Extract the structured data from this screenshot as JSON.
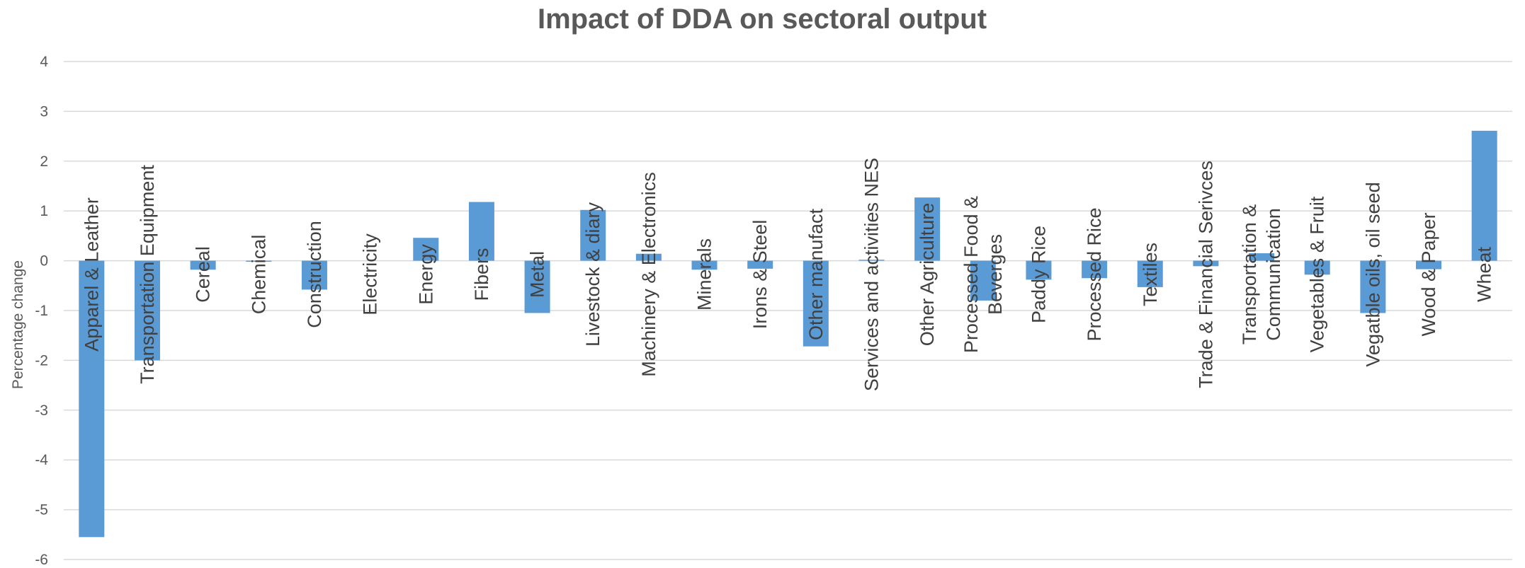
{
  "chart_data": {
    "type": "bar",
    "title": "Impact of DDA on sectoral output",
    "ylabel": "Percentage change",
    "xlabel": "",
    "ylim": [
      -6,
      4
    ],
    "yticks": [
      4,
      3,
      2,
      1,
      0,
      -1,
      -2,
      -3,
      -4,
      -5,
      -6
    ],
    "grid": true,
    "bar_color": "#5b9bd5",
    "categories": [
      [
        "Apparel & Leather"
      ],
      [
        "Transportation Equipment"
      ],
      [
        "Cereal"
      ],
      [
        "Chemical"
      ],
      [
        "Construction"
      ],
      [
        "Electricity"
      ],
      [
        "Energy"
      ],
      [
        "Fibers"
      ],
      [
        "Metal"
      ],
      [
        "Livestock & diary"
      ],
      [
        "Machinery & Electronics"
      ],
      [
        "Minerals"
      ],
      [
        "Irons & Steel"
      ],
      [
        "Other manufact"
      ],
      [
        "Services and activities NES"
      ],
      [
        "Other Agriculture"
      ],
      [
        "Processed Food &",
        "Beverges"
      ],
      [
        "Paddy Rice"
      ],
      [
        "Processed Rice"
      ],
      [
        "Textiles"
      ],
      [
        "Trade & Financial Serivces"
      ],
      [
        "Transportation &",
        "Communication"
      ],
      [
        "Vegetables & Fruit"
      ],
      [
        "Vegatble oils, oil seed"
      ],
      [
        "Wood & Paper"
      ],
      [
        "Wheat"
      ]
    ],
    "values": [
      -5.55,
      -2.0,
      -0.18,
      -0.02,
      -0.58,
      0.0,
      0.46,
      1.18,
      -1.05,
      1.02,
      0.14,
      -0.18,
      -0.16,
      -1.72,
      0.02,
      1.27,
      -0.8,
      -0.38,
      -0.35,
      -0.53,
      -0.11,
      0.15,
      -0.28,
      -1.05,
      -0.17,
      2.61
    ]
  }
}
